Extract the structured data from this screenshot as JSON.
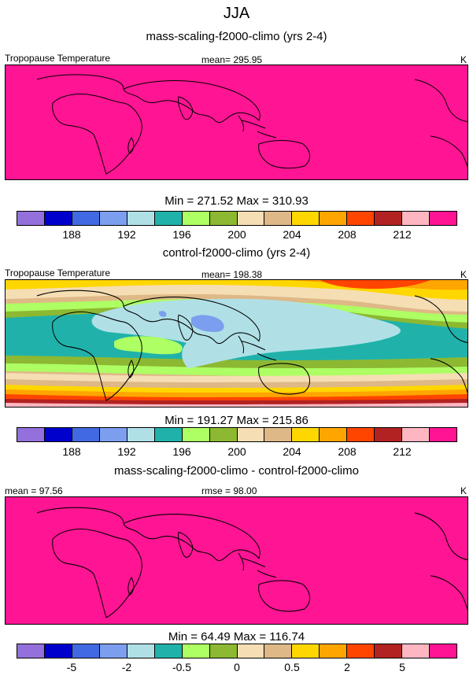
{
  "page_title": "JJA",
  "colorbar_colors": [
    "#9370DB",
    "#0000CD",
    "#4169E1",
    "#7B9EEE",
    "#B0E0E6",
    "#20B2AA",
    "#ADFF63",
    "#8DB832",
    "#F5DEB3",
    "#DEB887",
    "#FFD700",
    "#FFA500",
    "#FF4500",
    "#B22222",
    "#FFB6C1",
    "#FF1493"
  ],
  "panels": [
    {
      "title": "mass-scaling-f2000-climo (yrs 2-4)",
      "left_label": "Tropopause Temperature",
      "center_label": "mean= 295.95",
      "units": "K",
      "minmax": "Min = 271.52 Max = 310.93",
      "tick_labels": [
        "188",
        "192",
        "196",
        "200",
        "204",
        "208",
        "212"
      ],
      "field": "uniform-max"
    },
    {
      "title": "control-f2000-climo (yrs 2-4)",
      "left_label": "Tropopause Temperature",
      "center_label": "mean= 198.38",
      "units": "K",
      "minmax": "Min = 191.27 Max = 215.86",
      "tick_labels": [
        "188",
        "192",
        "196",
        "200",
        "204",
        "208",
        "212"
      ],
      "field": "banded"
    },
    {
      "title": "mass-scaling-f2000-climo - control-f2000-climo",
      "left_label": "mean =  97.56",
      "center_label": "rmse =  98.00",
      "units": "K",
      "minmax": "Min =  64.49 Max = 116.74",
      "tick_labels": [
        "-5",
        "-2",
        "-0.5",
        "0",
        "0.5",
        "2",
        "5"
      ],
      "field": "uniform-max"
    }
  ]
}
